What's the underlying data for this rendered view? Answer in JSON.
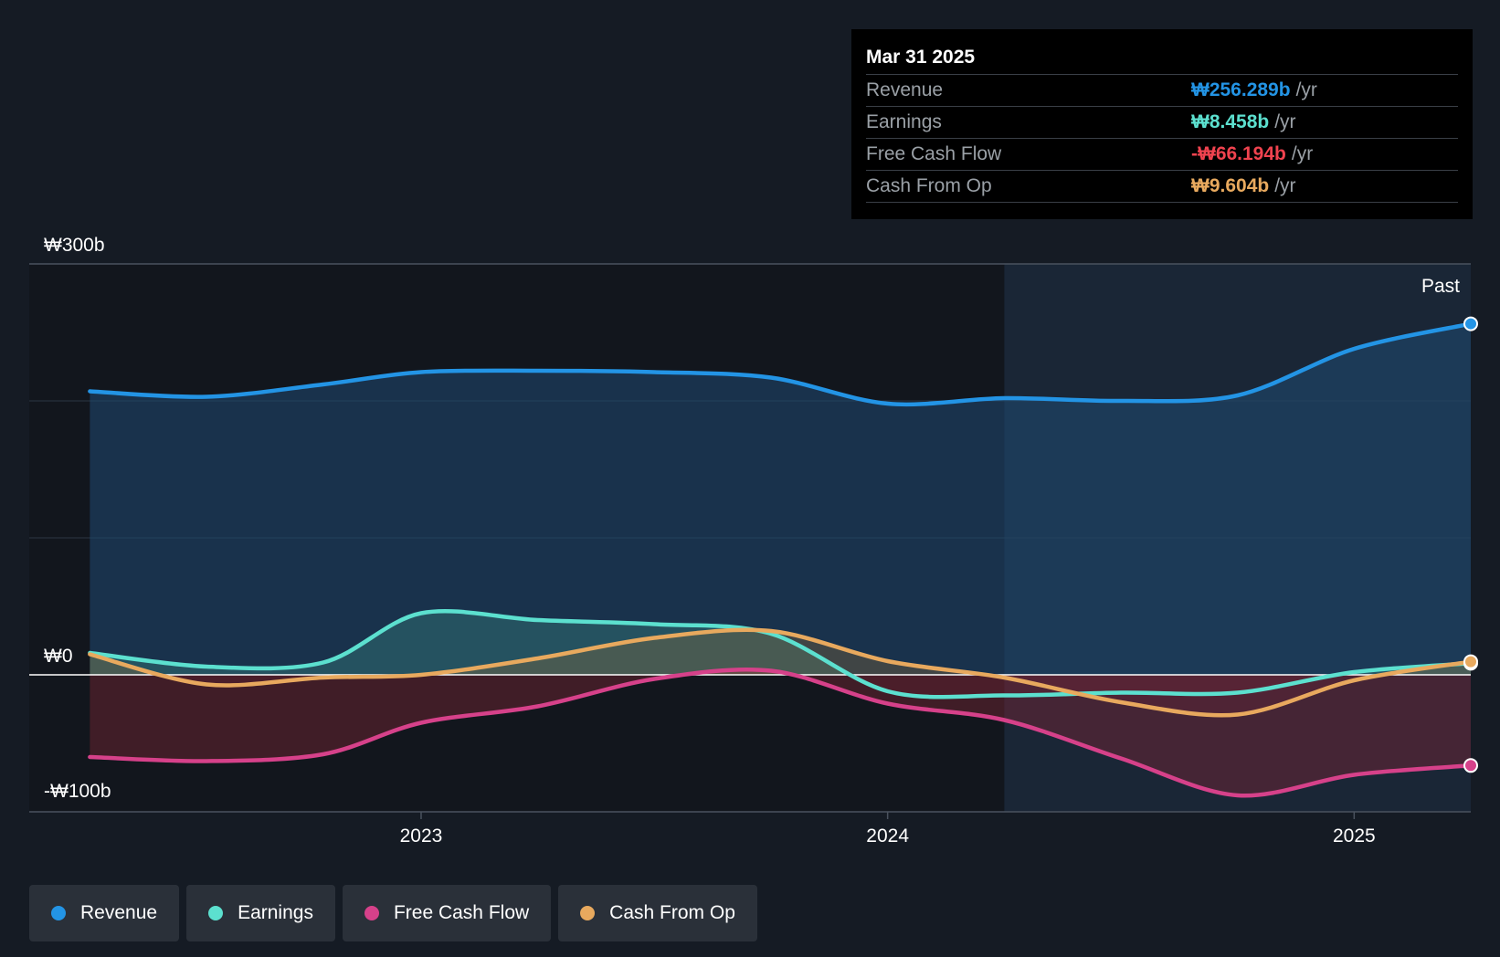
{
  "tooltip": {
    "date": "Mar 31 2025",
    "rows": [
      {
        "label": "Revenue",
        "value": "₩256.289b",
        "unit": "/yr",
        "color": "#2394e5"
      },
      {
        "label": "Earnings",
        "value": "₩8.458b",
        "unit": "/yr",
        "color": "#5ce0cf"
      },
      {
        "label": "Free Cash Flow",
        "value": "-₩66.194b",
        "unit": "/yr",
        "color": "#f0434f"
      },
      {
        "label": "Cash From Op",
        "value": "₩9.604b",
        "unit": "/yr",
        "color": "#e8a95e"
      }
    ]
  },
  "legend": [
    {
      "label": "Revenue",
      "color": "#2394e5"
    },
    {
      "label": "Earnings",
      "color": "#5ce0cf"
    },
    {
      "label": "Free Cash Flow",
      "color": "#d6418a"
    },
    {
      "label": "Cash From Op",
      "color": "#e8a95e"
    }
  ],
  "chart_data": {
    "type": "line",
    "title": "",
    "xlabel": "",
    "ylabel": "",
    "currency": "₩",
    "ylim": [
      -100,
      300
    ],
    "y_ticks": [
      {
        "value": 300,
        "label": "₩300b"
      },
      {
        "value": 0,
        "label": "₩0"
      },
      {
        "value": -100,
        "label": "-₩100b"
      }
    ],
    "x_ticks": [
      {
        "value": 2023.0,
        "label": "2023"
      },
      {
        "value": 2024.0,
        "label": "2024"
      },
      {
        "value": 2025.0,
        "label": "2025"
      }
    ],
    "xlim": [
      2022.16,
      2025.25
    ],
    "past_from": 2024.25,
    "past_label": "Past",
    "grid": true,
    "series": [
      {
        "name": "Revenue",
        "color": "#2394e5",
        "x": [
          2022.29,
          2022.54,
          2022.79,
          2023.0,
          2023.25,
          2023.5,
          2023.75,
          2024.0,
          2024.25,
          2024.5,
          2024.75,
          2025.0,
          2025.25
        ],
        "values": [
          207,
          203,
          212,
          221,
          222,
          221,
          217,
          198,
          202,
          200,
          204,
          238,
          256.289
        ]
      },
      {
        "name": "Earnings",
        "color": "#5ce0cf",
        "x": [
          2022.29,
          2022.54,
          2022.79,
          2023.0,
          2023.25,
          2023.5,
          2023.75,
          2024.0,
          2024.25,
          2024.5,
          2024.75,
          2025.0,
          2025.25
        ],
        "values": [
          16,
          6,
          9,
          45,
          40,
          37,
          30,
          -12,
          -15,
          -13,
          -13,
          2,
          8.458
        ]
      },
      {
        "name": "Free Cash Flow",
        "color": "#d6418a",
        "x": [
          2022.29,
          2022.54,
          2022.79,
          2023.0,
          2023.25,
          2023.5,
          2023.75,
          2024.0,
          2024.25,
          2024.5,
          2024.75,
          2025.0,
          2025.25
        ],
        "values": [
          -60,
          -63,
          -58,
          -35,
          -23,
          -3,
          3,
          -21,
          -33,
          -61,
          -88,
          -73,
          -66.194
        ]
      },
      {
        "name": "Cash From Op",
        "color": "#e8a95e",
        "x": [
          2022.29,
          2022.54,
          2022.79,
          2023.0,
          2023.25,
          2023.5,
          2023.75,
          2024.0,
          2024.25,
          2024.5,
          2024.75,
          2025.0,
          2025.25
        ],
        "values": [
          15,
          -7,
          -2,
          0,
          12,
          27,
          32,
          10,
          -2,
          -20,
          -29,
          -4,
          9.604
        ]
      }
    ]
  }
}
